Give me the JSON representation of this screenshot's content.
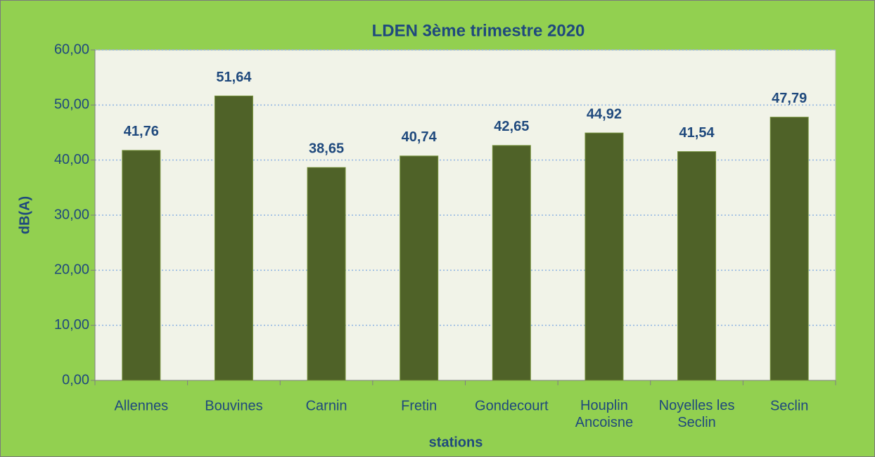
{
  "chart_data": {
    "type": "bar",
    "title": "LDEN 3ème trimestre 2020",
    "x_label": "stations",
    "y_label": "dB(A)",
    "categories": [
      "Allennes",
      "Bouvines",
      "Carnin",
      "Fretin",
      "Gondecourt",
      "Houplin\nAncoisne",
      "Noyelles les\nSeclin",
      "Seclin"
    ],
    "values": [
      41.76,
      51.64,
      38.65,
      40.74,
      42.65,
      44.92,
      41.54,
      47.79
    ],
    "value_labels": [
      "41,76",
      "51,64",
      "38,65",
      "40,74",
      "42,65",
      "44,92",
      "41,54",
      "47,79"
    ],
    "color": "#4f6228",
    "ylim": [
      0,
      60
    ],
    "yticks": [
      {
        "value": 0,
        "label": "0,00"
      },
      {
        "value": 10,
        "label": "10,00"
      },
      {
        "value": 20,
        "label": "20,00"
      },
      {
        "value": 30,
        "label": "30,00"
      },
      {
        "value": 40,
        "label": "40,00"
      },
      {
        "value": 50,
        "label": "50,00"
      },
      {
        "value": 60,
        "label": "60,00"
      }
    ],
    "grid": true
  }
}
